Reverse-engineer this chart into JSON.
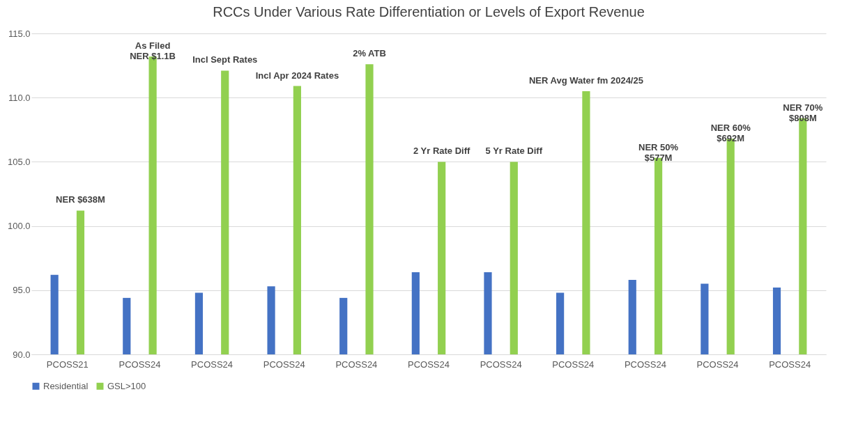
{
  "chart_data": {
    "type": "bar",
    "title": "RCCs Under Various Rate Differentiation or Levels of Export Revenue",
    "categories": [
      "PCOSS21",
      "PCOSS24",
      "PCOSS24",
      "PCOSS24",
      "PCOSS24",
      "PCOSS24",
      "PCOSS24",
      "PCOSS24",
      "PCOSS24",
      "PCOSS24",
      "PCOSS24"
    ],
    "series": [
      {
        "name": "Residential",
        "color": "#4472c4",
        "values": [
          96.2,
          94.4,
          94.8,
          95.3,
          94.4,
          96.4,
          96.4,
          94.8,
          95.8,
          95.5,
          95.2
        ]
      },
      {
        "name": "GSL>100",
        "color": "#92d050",
        "values": [
          101.2,
          113.2,
          112.1,
          110.9,
          112.6,
          105.0,
          105.0,
          110.5,
          105.3,
          106.8,
          108.4
        ]
      }
    ],
    "annotations": [
      "NER $638M",
      "As Filed\nNER $1.1B",
      "Incl Sept Rates",
      "Incl Apr 2024 Rates",
      "2% ATB",
      "2 Yr Rate Diff",
      "5 Yr Rate Diff",
      "NER Avg Water fm 2024/25",
      "NER 50%\n$577M",
      "NER 60%\n$692M",
      "NER 70%\n$808M"
    ],
    "ylim": [
      90,
      115
    ],
    "yticks": [
      {
        "value": 90,
        "label": "90.0"
      },
      {
        "value": 95,
        "label": "95.0"
      },
      {
        "value": 100,
        "label": "100.0"
      },
      {
        "value": 105,
        "label": "105.0"
      },
      {
        "value": 110,
        "label": "110.0"
      },
      {
        "value": 115,
        "label": "115.0"
      }
    ],
    "grid": "y",
    "legend": "bottom"
  }
}
